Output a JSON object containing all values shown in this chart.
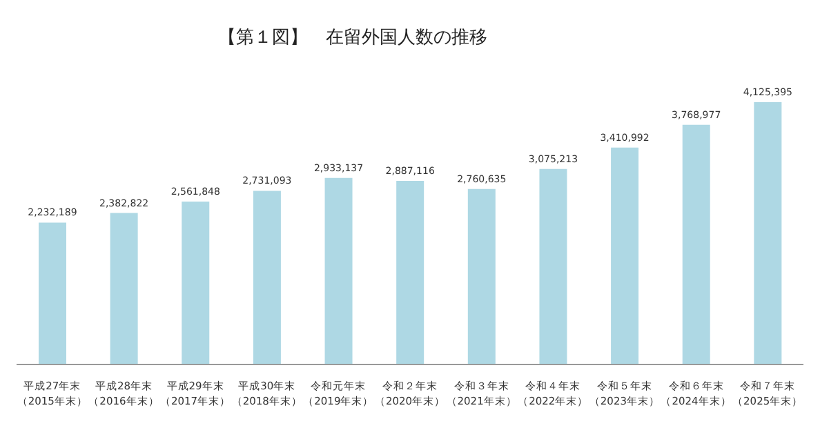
{
  "chart_data": {
    "type": "bar",
    "title": "【第１図】　在留外国人数の推移",
    "categories": [
      "平成27年末（2015年末）",
      "平成28年末（2016年末）",
      "平成29年末（2017年末）",
      "平成30年末（2018年末）",
      "令和元年末（2019年末）",
      "令和２年末（2020年末）",
      "令和３年末（2021年末）",
      "令和４年末（2022年末）",
      "令和５年末（2023年末）",
      "令和６年末（2024年末）",
      "令和７年末（2025年末）"
    ],
    "values": [
      2232189,
      2382822,
      2561848,
      2731093,
      2933137,
      2887116,
      2760635,
      3075213,
      3410992,
      3768977,
      4125395
    ],
    "value_labels": [
      "2,232,189",
      "2,382,822",
      "2,561,848",
      "2,731,093",
      "2,933,137",
      "2,887,116",
      "2,760,635",
      "3,075,213",
      "3,410,992",
      "3,768,977",
      "4,125,395"
    ],
    "color": "#aed8e4",
    "tick_labels": "x"
  }
}
